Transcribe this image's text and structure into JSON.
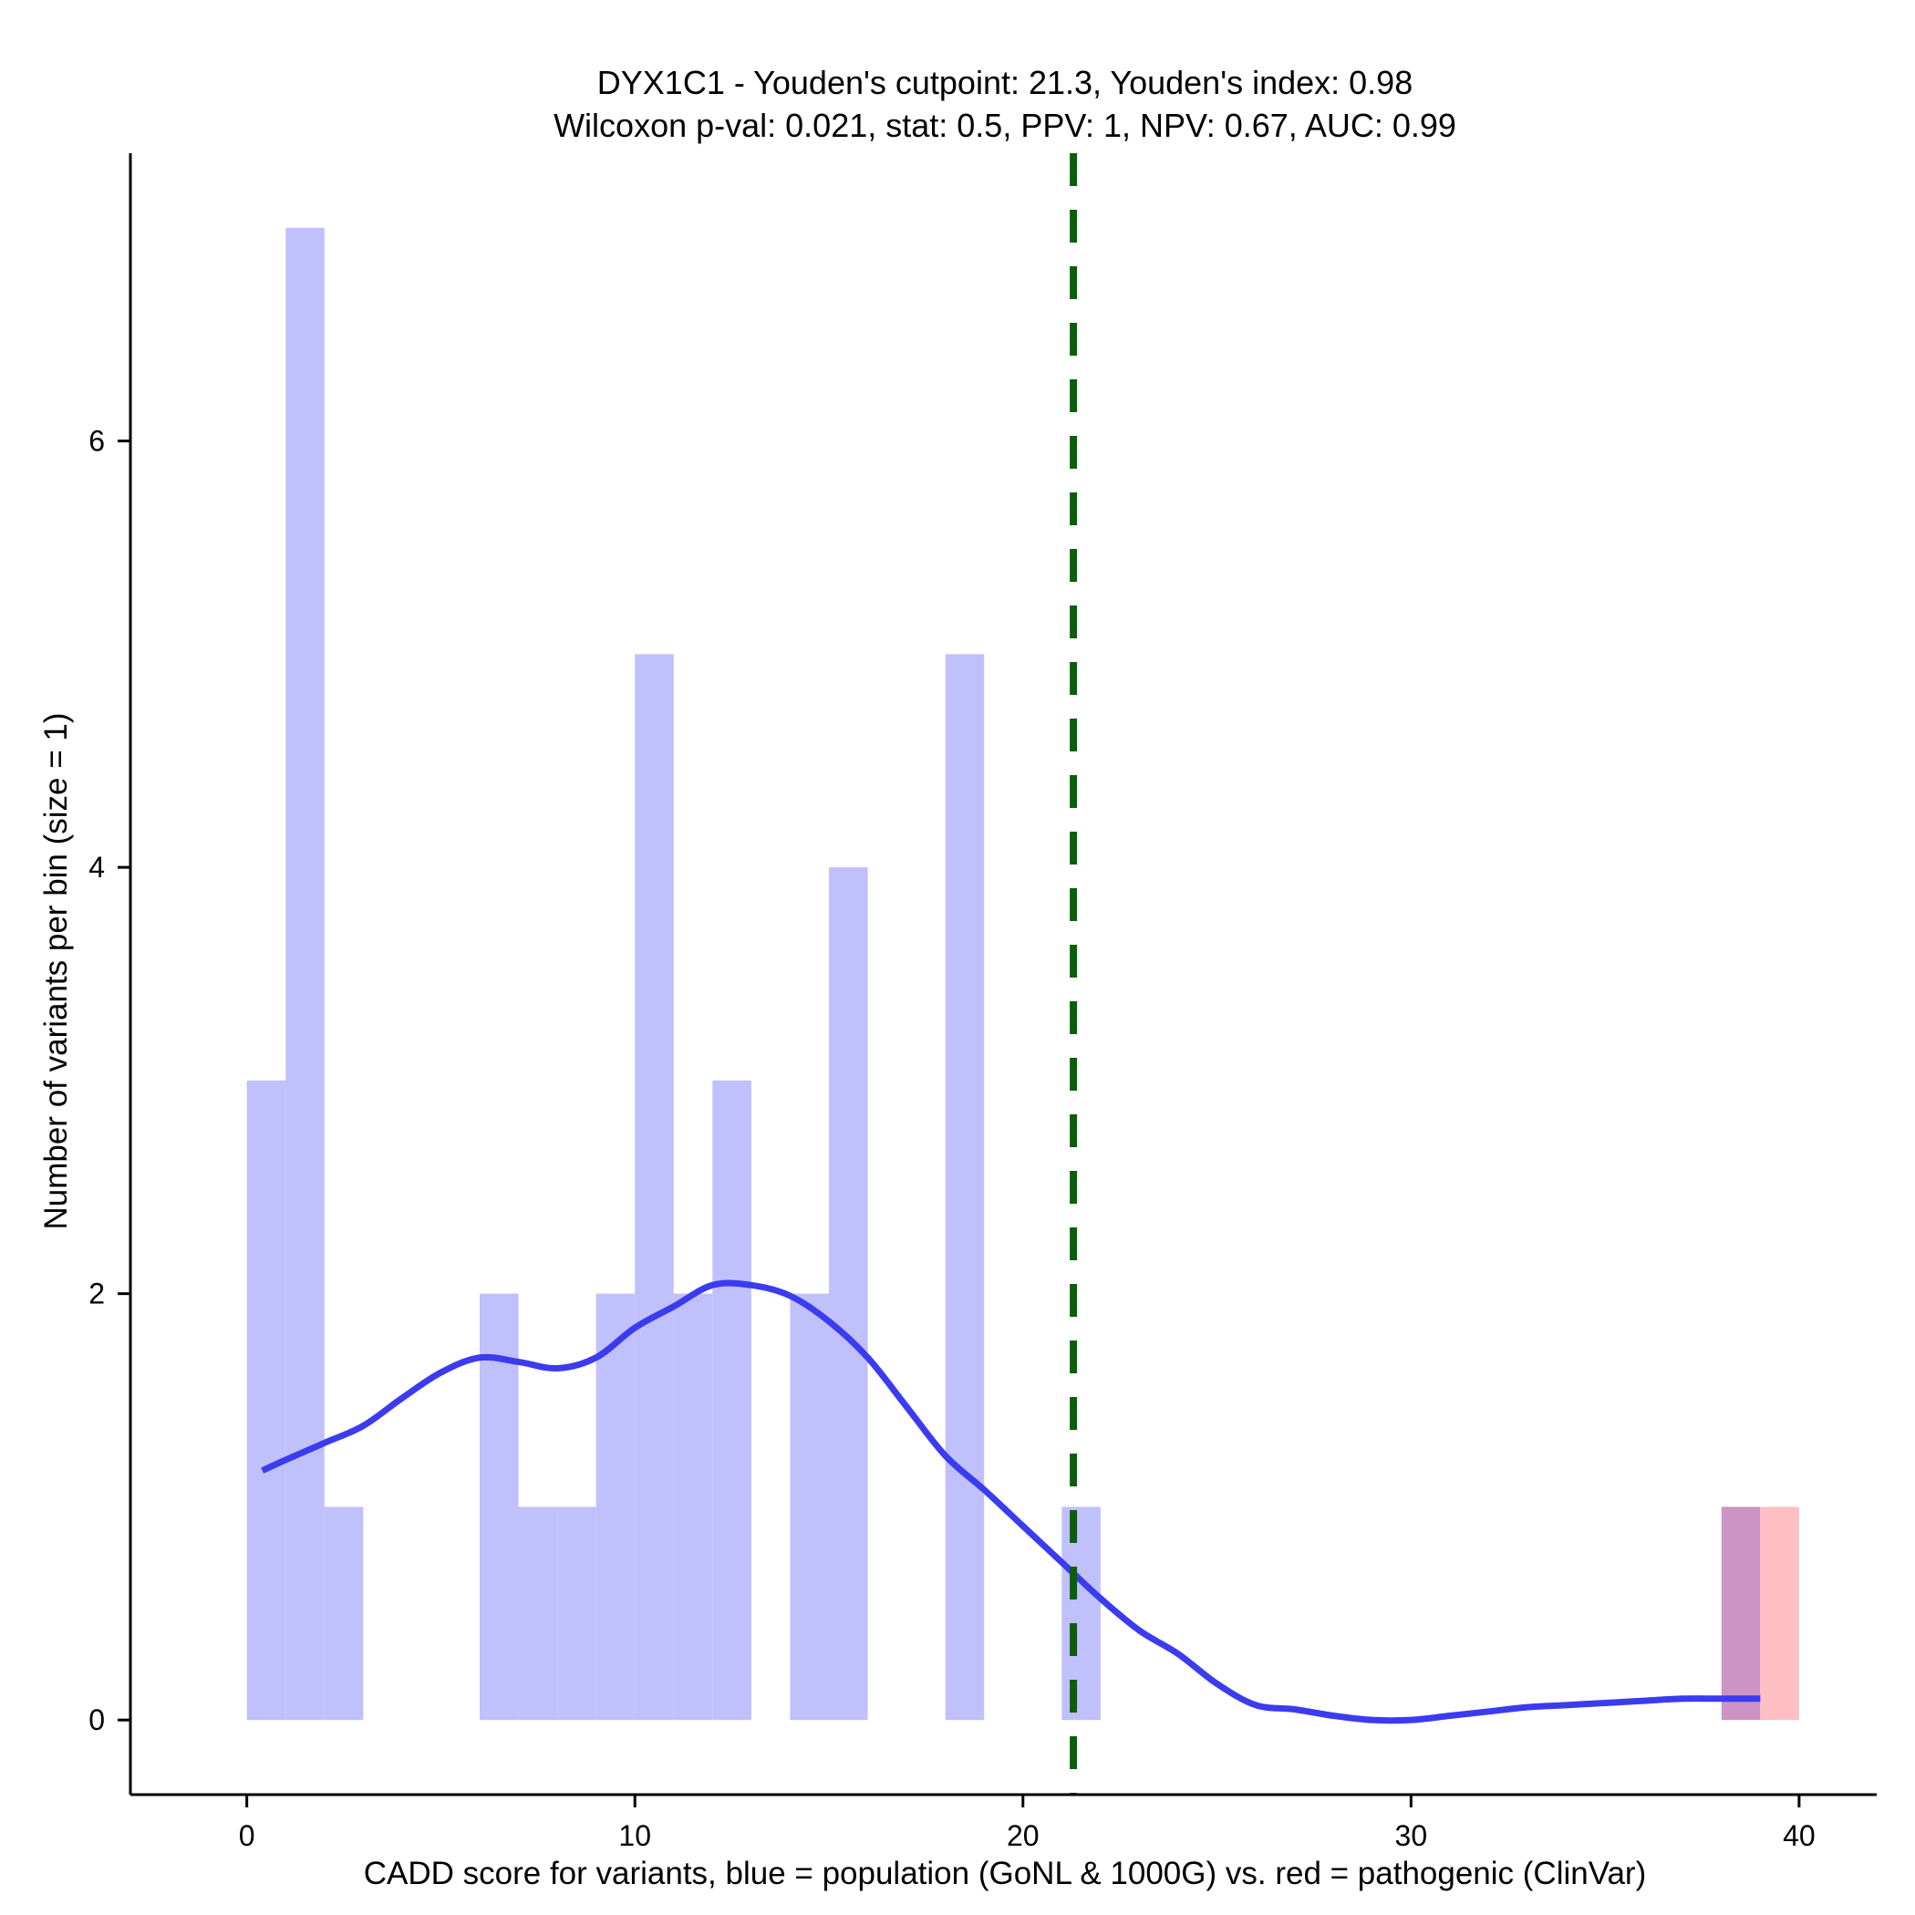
{
  "chart_data": {
    "type": "bar",
    "title_line1": "DYX1C1 - Youden's cutpoint: 21.3, Youden's index: 0.98",
    "title_line2": "Wilcoxon p-val: 0.021, stat: 0.5, PPV: 1, NPV: 0.67, AUC: 0.99",
    "xlabel": "CADD score for variants, blue = population (GoNL & 1000G) vs. red = pathogenic (ClinVar)",
    "ylabel": "Number of variants per bin (size = 1)",
    "xlim": [
      -3,
      42
    ],
    "ylim": [
      -0.35,
      7.35
    ],
    "x_ticks": [
      0,
      10,
      20,
      30,
      40
    ],
    "y_ticks": [
      0,
      2,
      4,
      6
    ],
    "bin_width": 1,
    "cutpoint": 21.3,
    "colors": {
      "population": "#c0c0fc",
      "pathogenic": "#ffbfc3",
      "overlap": "#cc93c4",
      "density": "#3b3bf0",
      "cutpoint": "#0b5e0b"
    },
    "series": [
      {
        "name": "population",
        "bins": [
          {
            "start": 0,
            "count": 3
          },
          {
            "start": 1,
            "count": 7
          },
          {
            "start": 2,
            "count": 1
          },
          {
            "start": 6,
            "count": 2
          },
          {
            "start": 7,
            "count": 1
          },
          {
            "start": 8,
            "count": 1
          },
          {
            "start": 9,
            "count": 2
          },
          {
            "start": 10,
            "count": 5
          },
          {
            "start": 11,
            "count": 2
          },
          {
            "start": 12,
            "count": 3
          },
          {
            "start": 14,
            "count": 2
          },
          {
            "start": 15,
            "count": 4
          },
          {
            "start": 18,
            "count": 5
          },
          {
            "start": 21,
            "count": 1
          },
          {
            "start": 38,
            "count": 1
          }
        ]
      },
      {
        "name": "pathogenic",
        "bins": [
          {
            "start": 38,
            "count": 1
          },
          {
            "start": 39,
            "count": 1
          }
        ]
      }
    ],
    "density_curve": {
      "name": "population density",
      "x": [
        0.4,
        1,
        2,
        3,
        4,
        5,
        6,
        7,
        8,
        9,
        10,
        11,
        12,
        13,
        14,
        15,
        16,
        17,
        18,
        19,
        20,
        21,
        22,
        23,
        24,
        25,
        26,
        27,
        28,
        29,
        30,
        31,
        32,
        33,
        34,
        35,
        36,
        37,
        38,
        39
      ],
      "y": [
        1.17,
        1.22,
        1.3,
        1.38,
        1.51,
        1.63,
        1.7,
        1.68,
        1.65,
        1.7,
        1.84,
        1.94,
        2.04,
        2.04,
        1.99,
        1.87,
        1.7,
        1.47,
        1.24,
        1.08,
        0.91,
        0.74,
        0.57,
        0.42,
        0.31,
        0.17,
        0.07,
        0.05,
        0.02,
        0.0,
        0.0,
        0.02,
        0.04,
        0.06,
        0.07,
        0.08,
        0.09,
        0.1,
        0.1,
        0.1
      ]
    }
  }
}
